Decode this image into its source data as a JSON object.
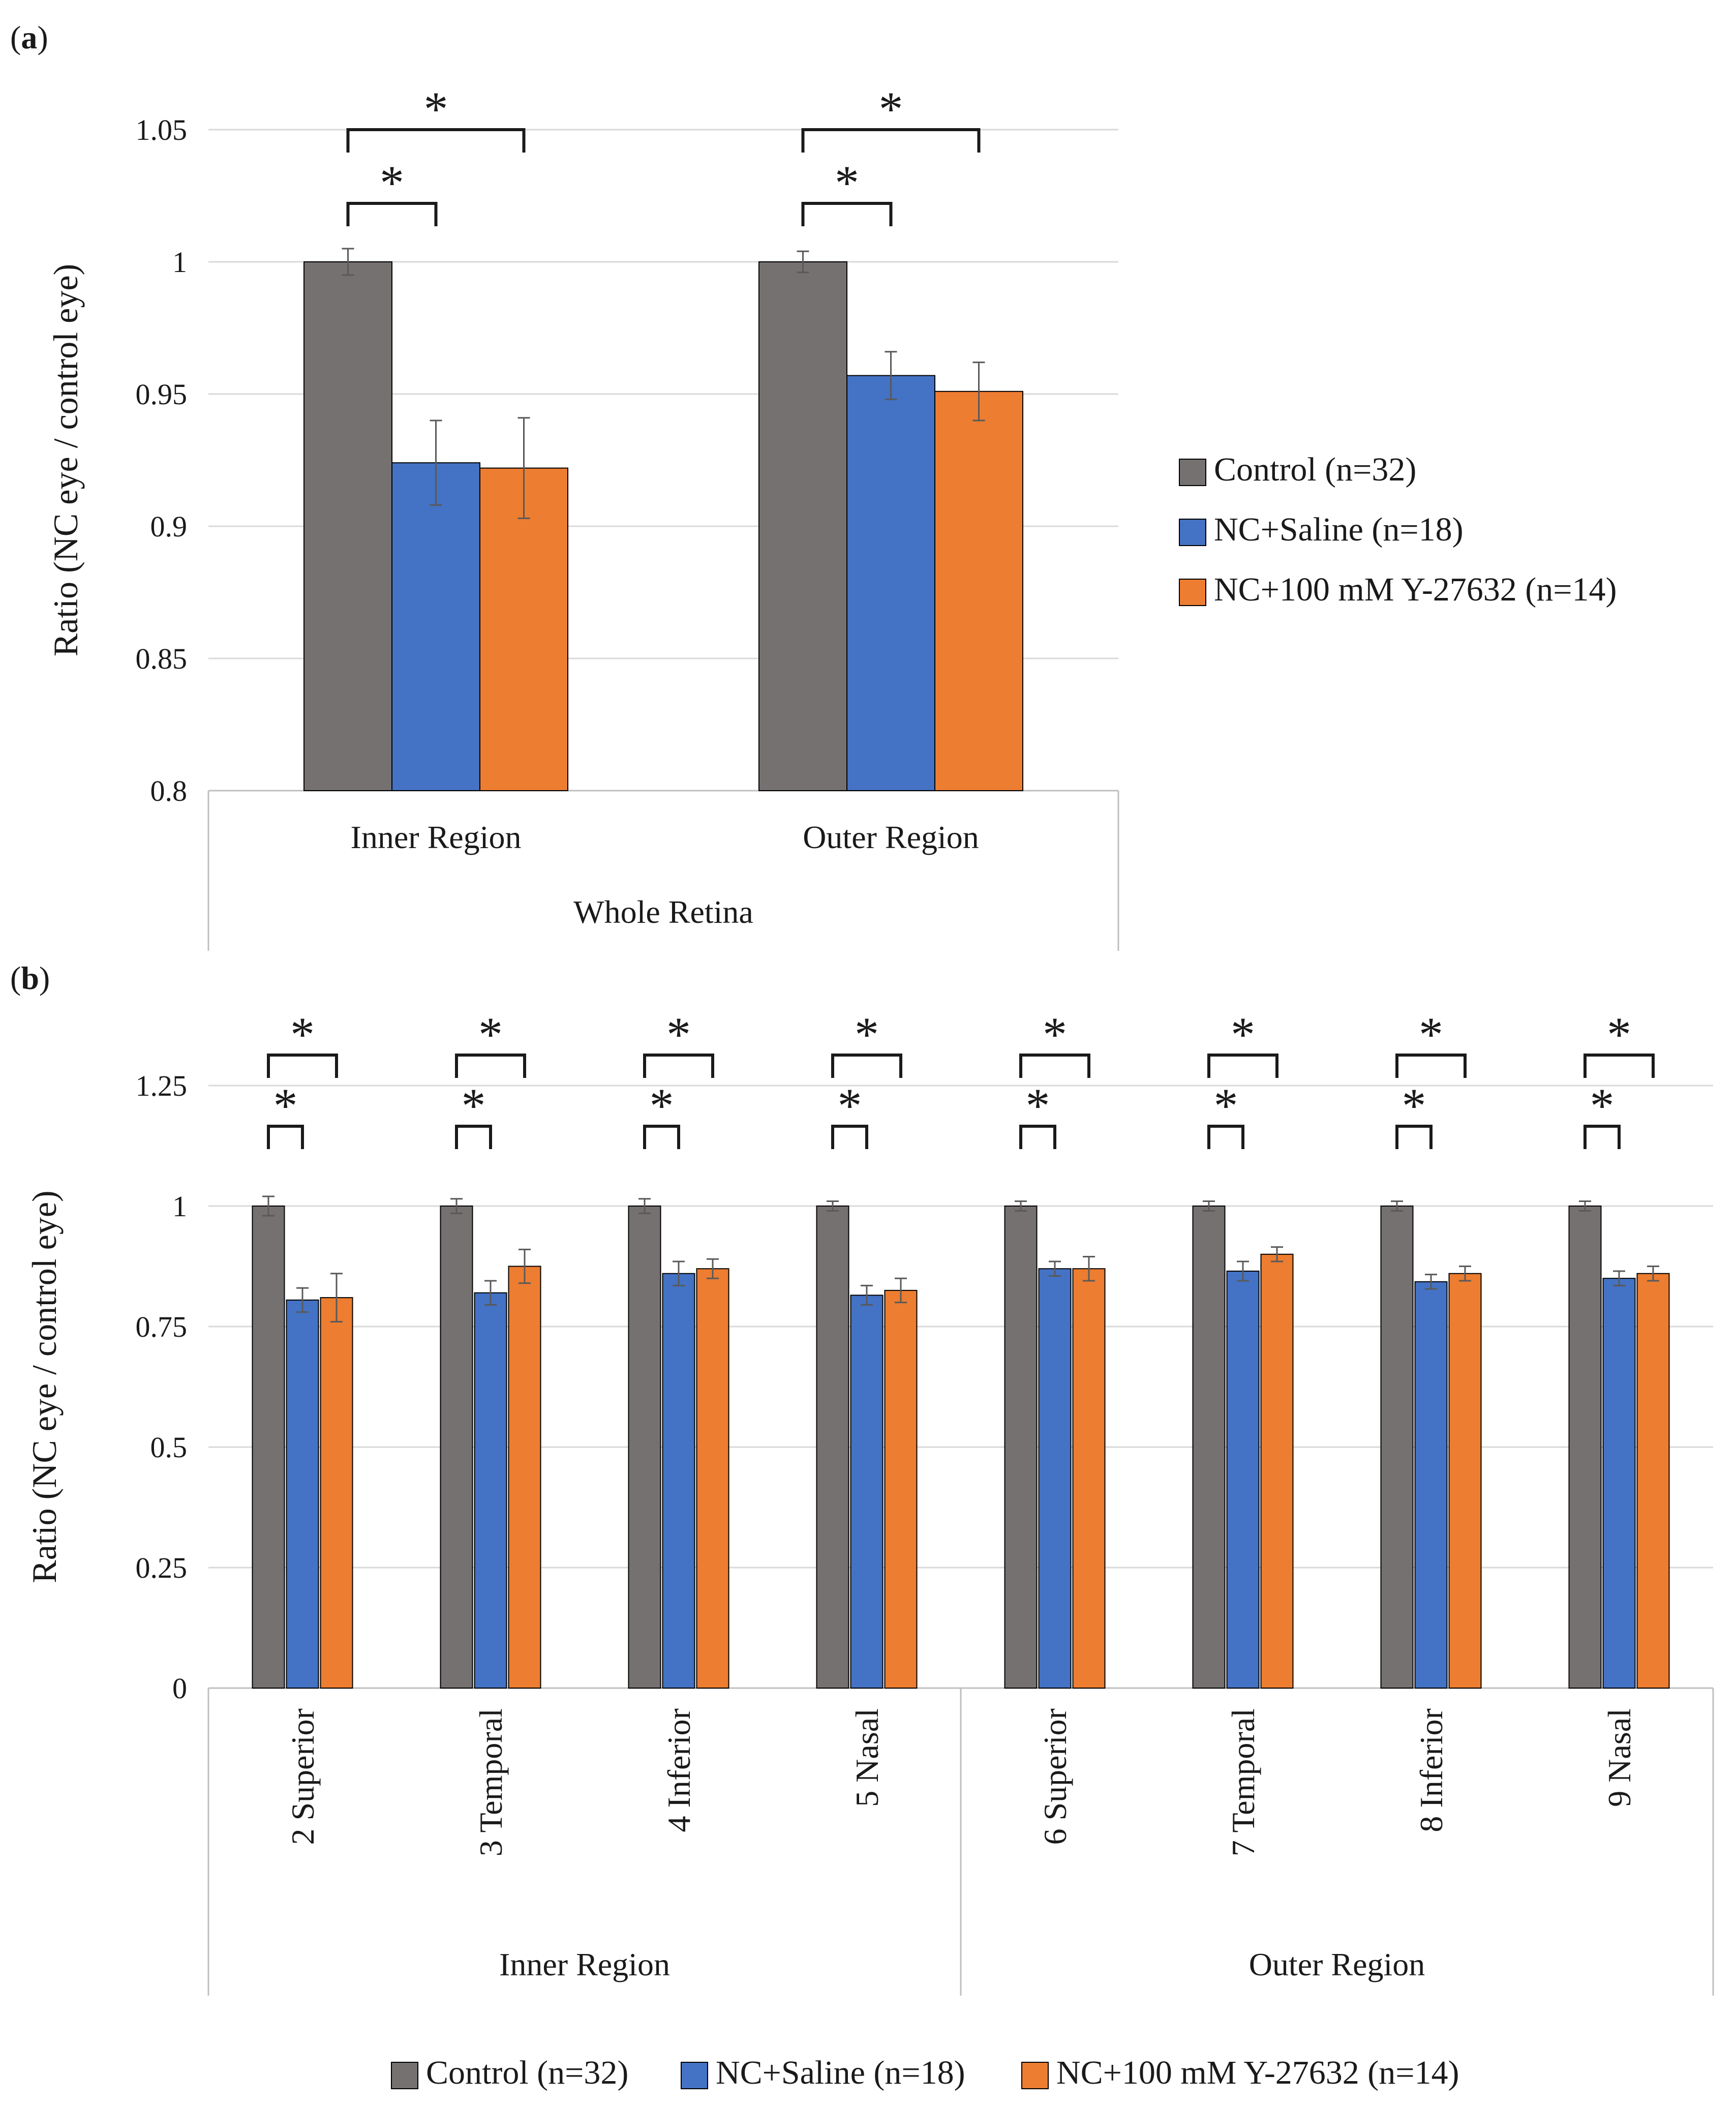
{
  "colors": {
    "control": "#767171",
    "saline": "#4472C4",
    "y27632": "#ED7D31",
    "grid": "#D9D9D9",
    "axis": "#BFBFBF",
    "error": "#595959",
    "bracket": "#1a1a1a"
  },
  "legend": [
    {
      "key": "control",
      "label": "Control (n=32)"
    },
    {
      "key": "saline",
      "label": "NC+Saline (n=18)"
    },
    {
      "key": "y27632",
      "label": "NC+100 mM Y-27632 (n=14)"
    }
  ],
  "significance_marker": "*",
  "chart_data": [
    {
      "panel": "a",
      "panel_open": "(",
      "panel_letter": "a",
      "panel_close": ")",
      "type": "bar",
      "ylabel": "Ratio (NC eye / control eye)",
      "ylim": [
        0.8,
        1.05
      ],
      "yticks": [
        0.8,
        0.85,
        0.9,
        0.95,
        1,
        1.05
      ],
      "ytick_labels": [
        "0.8",
        "0.85",
        "0.9",
        "0.95",
        "1",
        "1.05"
      ],
      "grid": true,
      "legend_position": "right",
      "group_label": "Whole Retina",
      "categories": [
        "Inner Region",
        "Outer Region"
      ],
      "series": [
        {
          "name": "Control (n=32)",
          "key": "control",
          "values": [
            1.0,
            1.0
          ],
          "errors": [
            0.005,
            0.004
          ]
        },
        {
          "name": "NC+Saline (n=18)",
          "key": "saline",
          "values": [
            0.924,
            0.957
          ],
          "errors": [
            0.016,
            0.009
          ]
        },
        {
          "name": "NC+100 mM Y-27632 (n=14)",
          "key": "y27632",
          "values": [
            0.922,
            0.951
          ],
          "errors": [
            0.019,
            0.011
          ]
        }
      ],
      "significance": [
        {
          "category": 0,
          "from_series": 0,
          "to_series": 1,
          "label": "*"
        },
        {
          "category": 0,
          "from_series": 0,
          "to_series": 2,
          "label": "*"
        },
        {
          "category": 1,
          "from_series": 0,
          "to_series": 1,
          "label": "*"
        },
        {
          "category": 1,
          "from_series": 0,
          "to_series": 2,
          "label": "*"
        }
      ]
    },
    {
      "panel": "b",
      "panel_open": "(",
      "panel_letter": "b",
      "panel_close": ")",
      "type": "bar",
      "ylabel": "Ratio (NC eye / control eye)",
      "ylim": [
        0,
        1.25
      ],
      "yticks": [
        0,
        0.25,
        0.5,
        0.75,
        1,
        1.25
      ],
      "ytick_labels": [
        "0",
        "0.25",
        "0.5",
        "0.75",
        "1",
        "1.25"
      ],
      "grid": true,
      "legend_position": "bottom",
      "categories": [
        "2 Superior",
        "3 Temporal",
        "4 Inferior",
        "5 Nasal",
        "6 Superior",
        "7 Temporal",
        "8 Inferior",
        "9 Nasal"
      ],
      "groups": [
        {
          "label": "Inner Region",
          "from": 0,
          "to": 3
        },
        {
          "label": "Outer Region",
          "from": 4,
          "to": 7
        }
      ],
      "series": [
        {
          "name": "Control (n=32)",
          "key": "control",
          "values": [
            1.0,
            1.0,
            1.0,
            1.0,
            1.0,
            1.0,
            1.0,
            1.0
          ],
          "errors": [
            0.02,
            0.015,
            0.015,
            0.01,
            0.01,
            0.01,
            0.01,
            0.01
          ]
        },
        {
          "name": "NC+Saline (n=18)",
          "key": "saline",
          "values": [
            0.805,
            0.82,
            0.86,
            0.815,
            0.87,
            0.865,
            0.843,
            0.85
          ],
          "errors": [
            0.025,
            0.025,
            0.025,
            0.02,
            0.015,
            0.02,
            0.015,
            0.015
          ]
        },
        {
          "name": "NC+100 mM Y-27632 (n=14)",
          "key": "y27632",
          "values": [
            0.81,
            0.875,
            0.87,
            0.825,
            0.87,
            0.9,
            0.86,
            0.86
          ],
          "errors": [
            0.05,
            0.035,
            0.02,
            0.025,
            0.025,
            0.015,
            0.015,
            0.015
          ]
        }
      ],
      "significance": [
        {
          "category": 0,
          "from_series": 0,
          "to_series": 1,
          "label": "*"
        },
        {
          "category": 0,
          "from_series": 0,
          "to_series": 2,
          "label": "*"
        },
        {
          "category": 1,
          "from_series": 0,
          "to_series": 1,
          "label": "*"
        },
        {
          "category": 1,
          "from_series": 0,
          "to_series": 2,
          "label": "*"
        },
        {
          "category": 2,
          "from_series": 0,
          "to_series": 1,
          "label": "*"
        },
        {
          "category": 2,
          "from_series": 0,
          "to_series": 2,
          "label": "*"
        },
        {
          "category": 3,
          "from_series": 0,
          "to_series": 1,
          "label": "*"
        },
        {
          "category": 3,
          "from_series": 0,
          "to_series": 2,
          "label": "*"
        },
        {
          "category": 4,
          "from_series": 0,
          "to_series": 1,
          "label": "*"
        },
        {
          "category": 4,
          "from_series": 0,
          "to_series": 2,
          "label": "*"
        },
        {
          "category": 5,
          "from_series": 0,
          "to_series": 1,
          "label": "*"
        },
        {
          "category": 5,
          "from_series": 0,
          "to_series": 2,
          "label": "*"
        },
        {
          "category": 6,
          "from_series": 0,
          "to_series": 1,
          "label": "*"
        },
        {
          "category": 6,
          "from_series": 0,
          "to_series": 2,
          "label": "*"
        },
        {
          "category": 7,
          "from_series": 0,
          "to_series": 1,
          "label": "*"
        },
        {
          "category": 7,
          "from_series": 0,
          "to_series": 2,
          "label": "*"
        }
      ]
    }
  ]
}
